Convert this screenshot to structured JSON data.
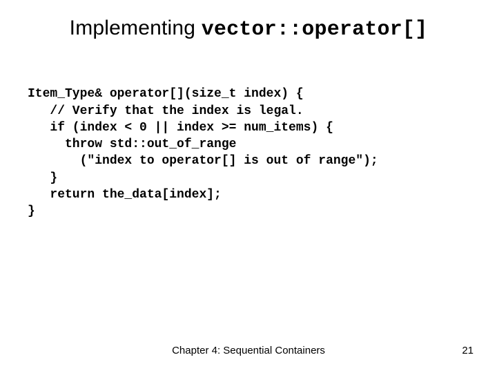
{
  "title": {
    "prefix": "Implementing ",
    "mono": "vector::operator[]"
  },
  "code": {
    "lines": [
      "Item_Type& operator[](size_t index) {",
      "   // Verify that the index is legal.",
      "   if (index < 0 || index >= num_items) {",
      "     throw std::out_of_range",
      "       (\"index to operator[] is out of range\");",
      "   }",
      "   return the_data[index];",
      "}"
    ]
  },
  "footer": {
    "center": "Chapter 4: Sequential Containers",
    "page": "21"
  },
  "style": {
    "background_color": "#ffffff",
    "text_color": "#000000",
    "title_fontsize": 30,
    "code_fontsize": 18,
    "code_font_family": "Courier New",
    "footer_fontsize": 15
  }
}
